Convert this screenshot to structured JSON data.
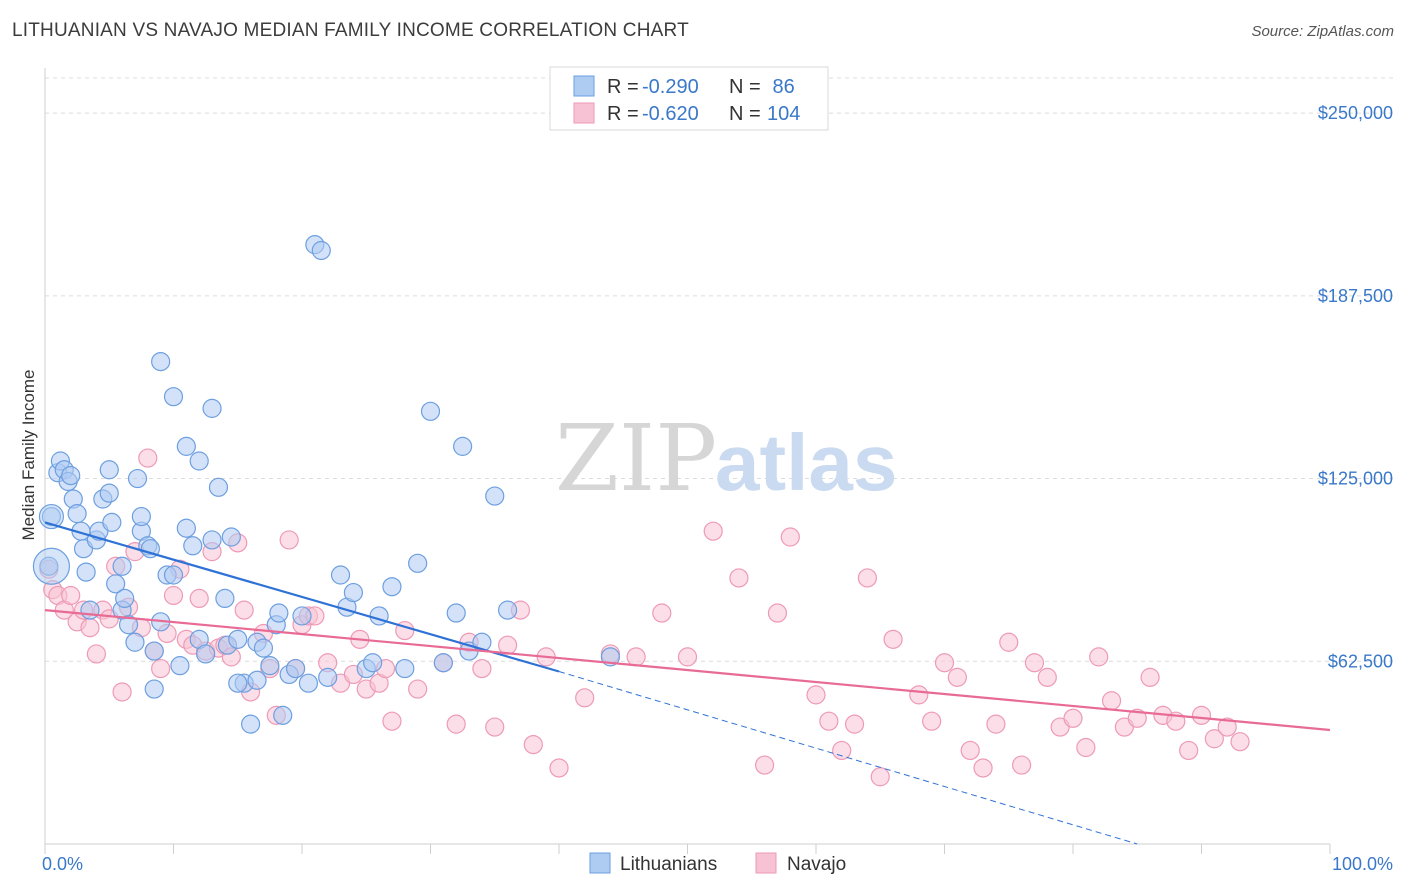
{
  "header": {
    "title": "LITHUANIAN VS NAVAJO MEDIAN FAMILY INCOME CORRELATION CHART",
    "source": "Source: ZipAtlas.com"
  },
  "watermark": {
    "zip": "ZIP",
    "atlas": "atlas"
  },
  "colors": {
    "blue_fill": "#aecbf2",
    "blue_stroke": "#6d9fe0",
    "blue_line": "#2f72d6",
    "pink_fill": "#f7c3d4",
    "pink_stroke": "#ee9ab6",
    "pink_line": "#e86b95",
    "tick_text": "#3a78c9",
    "grid": "#dcdcdc"
  },
  "legend": {
    "rows": [
      {
        "r_label": "R = ",
        "r_value": "-0.290",
        "n_label": "N = ",
        "n_value": " 86"
      },
      {
        "r_label": "R = ",
        "r_value": "-0.620",
        "n_label": "N = ",
        "n_value": "104"
      }
    ]
  },
  "chart_data": {
    "type": "scatter",
    "title": "LITHUANIAN VS NAVAJO MEDIAN FAMILY INCOME CORRELATION CHART",
    "ylabel": "Median Family Income",
    "xlabel": "",
    "xlim": [
      0,
      100
    ],
    "ylim": [
      0,
      262000
    ],
    "x_tick_labels": [
      "0.0%",
      "100.0%"
    ],
    "y_ticks": [
      62500,
      125000,
      187500,
      250000
    ],
    "y_tick_labels": [
      "$62,500",
      "$125,000",
      "$187,500",
      "$250,000"
    ],
    "grid": true,
    "legend_position": "top-center",
    "series": [
      {
        "name": "Lithuanians",
        "points": [
          [
            0.5,
            112000
          ],
          [
            0.3,
            95000
          ],
          [
            1,
            127000
          ],
          [
            1.2,
            131000
          ],
          [
            1.5,
            128000
          ],
          [
            1.8,
            124000
          ],
          [
            2,
            126000
          ],
          [
            2.2,
            118000
          ],
          [
            2.5,
            113000
          ],
          [
            2.8,
            107000
          ],
          [
            3,
            101000
          ],
          [
            3.2,
            93000
          ],
          [
            3.5,
            80000
          ],
          [
            4,
            104000
          ],
          [
            4.2,
            107000
          ],
          [
            4.5,
            118000
          ],
          [
            5,
            120000
          ],
          [
            5.2,
            110000
          ],
          [
            5.5,
            89000
          ],
          [
            6,
            80000
          ],
          [
            6.2,
            84000
          ],
          [
            6.5,
            75000
          ],
          [
            7,
            69000
          ],
          [
            7.2,
            125000
          ],
          [
            7.5,
            107000
          ],
          [
            8,
            102000
          ],
          [
            8.2,
            101000
          ],
          [
            8.5,
            66000
          ],
          [
            9,
            76000
          ],
          [
            9.5,
            92000
          ],
          [
            10,
            92000
          ],
          [
            10.5,
            61000
          ],
          [
            11,
            136000
          ],
          [
            11.5,
            102000
          ],
          [
            12,
            70000
          ],
          [
            12.5,
            65000
          ],
          [
            13,
            149000
          ],
          [
            13.5,
            122000
          ],
          [
            14,
            84000
          ],
          [
            14.2,
            68000
          ],
          [
            14.5,
            105000
          ],
          [
            15,
            70000
          ],
          [
            15.5,
            55000
          ],
          [
            16,
            41000
          ],
          [
            16.5,
            69000
          ],
          [
            17,
            67000
          ],
          [
            17.5,
            61000
          ],
          [
            18,
            75000
          ],
          [
            18.5,
            44000
          ],
          [
            19,
            58000
          ],
          [
            20,
            78000
          ],
          [
            20.5,
            55000
          ],
          [
            21,
            205000
          ],
          [
            21.5,
            203000
          ],
          [
            22,
            57000
          ],
          [
            23,
            92000
          ],
          [
            23.5,
            81000
          ],
          [
            24,
            86000
          ],
          [
            25,
            60000
          ],
          [
            25.5,
            62000
          ],
          [
            26,
            78000
          ],
          [
            27,
            88000
          ],
          [
            28,
            60000
          ],
          [
            29,
            96000
          ],
          [
            30,
            148000
          ],
          [
            31,
            62000
          ],
          [
            32,
            79000
          ],
          [
            32.5,
            136000
          ],
          [
            33,
            66000
          ],
          [
            34,
            69000
          ],
          [
            35,
            119000
          ],
          [
            36,
            80000
          ],
          [
            12,
            131000
          ],
          [
            8.5,
            53000
          ],
          [
            9,
            165000
          ],
          [
            10,
            153000
          ],
          [
            7.5,
            112000
          ],
          [
            11,
            108000
          ],
          [
            13,
            104000
          ],
          [
            15,
            55000
          ],
          [
            16.5,
            56000
          ],
          [
            5,
            128000
          ],
          [
            6,
            95000
          ],
          [
            18.2,
            79000
          ],
          [
            19.5,
            60000
          ],
          [
            44,
            64000
          ]
        ]
      },
      {
        "name": "Navajo",
        "points": [
          [
            0.3,
            94000
          ],
          [
            0.6,
            87000
          ],
          [
            1,
            85000
          ],
          [
            1.5,
            80000
          ],
          [
            2,
            85000
          ],
          [
            2.5,
            76000
          ],
          [
            3,
            80000
          ],
          [
            3.5,
            74000
          ],
          [
            4,
            65000
          ],
          [
            4.5,
            80000
          ],
          [
            5,
            77000
          ],
          [
            5.5,
            95000
          ],
          [
            6,
            52000
          ],
          [
            6.5,
            81000
          ],
          [
            7,
            100000
          ],
          [
            7.5,
            74000
          ],
          [
            8,
            132000
          ],
          [
            8.5,
            66000
          ],
          [
            9,
            60000
          ],
          [
            9.5,
            72000
          ],
          [
            10,
            85000
          ],
          [
            10.5,
            94000
          ],
          [
            11,
            70000
          ],
          [
            11.5,
            68000
          ],
          [
            12,
            84000
          ],
          [
            12.5,
            66000
          ],
          [
            13,
            100000
          ],
          [
            13.5,
            67000
          ],
          [
            14,
            68000
          ],
          [
            14.5,
            64000
          ],
          [
            15,
            103000
          ],
          [
            15.5,
            80000
          ],
          [
            16,
            52000
          ],
          [
            17,
            72000
          ],
          [
            17.5,
            60000
          ],
          [
            18,
            44000
          ],
          [
            19,
            104000
          ],
          [
            19.5,
            60000
          ],
          [
            20,
            75000
          ],
          [
            20.5,
            78000
          ],
          [
            21,
            78000
          ],
          [
            22,
            62000
          ],
          [
            23,
            55000
          ],
          [
            24,
            58000
          ],
          [
            24.5,
            70000
          ],
          [
            25,
            53000
          ],
          [
            26,
            55000
          ],
          [
            26.5,
            60000
          ],
          [
            27,
            42000
          ],
          [
            28,
            73000
          ],
          [
            29,
            53000
          ],
          [
            31,
            62000
          ],
          [
            32,
            41000
          ],
          [
            33,
            69000
          ],
          [
            34,
            60000
          ],
          [
            35,
            40000
          ],
          [
            36,
            68000
          ],
          [
            37,
            80000
          ],
          [
            38,
            34000
          ],
          [
            39,
            64000
          ],
          [
            40,
            26000
          ],
          [
            42,
            50000
          ],
          [
            44,
            65000
          ],
          [
            46,
            64000
          ],
          [
            48,
            79000
          ],
          [
            50,
            64000
          ],
          [
            52,
            107000
          ],
          [
            54,
            91000
          ],
          [
            56,
            27000
          ],
          [
            57,
            79000
          ],
          [
            58,
            105000
          ],
          [
            60,
            51000
          ],
          [
            61,
            42000
          ],
          [
            62,
            32000
          ],
          [
            63,
            41000
          ],
          [
            64,
            91000
          ],
          [
            65,
            23000
          ],
          [
            66,
            70000
          ],
          [
            68,
            51000
          ],
          [
            69,
            42000
          ],
          [
            70,
            62000
          ],
          [
            71,
            57000
          ],
          [
            72,
            32000
          ],
          [
            73,
            26000
          ],
          [
            74,
            41000
          ],
          [
            75,
            69000
          ],
          [
            76,
            27000
          ],
          [
            77,
            62000
          ],
          [
            78,
            57000
          ],
          [
            79,
            40000
          ],
          [
            80,
            43000
          ],
          [
            81,
            33000
          ],
          [
            82,
            64000
          ],
          [
            83,
            49000
          ],
          [
            84,
            40000
          ],
          [
            85,
            43000
          ],
          [
            86,
            57000
          ],
          [
            87,
            44000
          ],
          [
            88,
            42000
          ],
          [
            89,
            32000
          ],
          [
            90,
            44000
          ],
          [
            91,
            36000
          ],
          [
            92,
            40000
          ],
          [
            93,
            35000
          ]
        ]
      }
    ],
    "trendlines": [
      {
        "series": "Lithuanians",
        "x0": 0,
        "y0": 110000,
        "x1": 40,
        "y1": 59000,
        "dashed_to_x": 85,
        "dashed_to_y": 0
      },
      {
        "series": "Navajo",
        "x0": 0,
        "y0": 80000,
        "x1": 100,
        "y1": 39000
      }
    ]
  }
}
